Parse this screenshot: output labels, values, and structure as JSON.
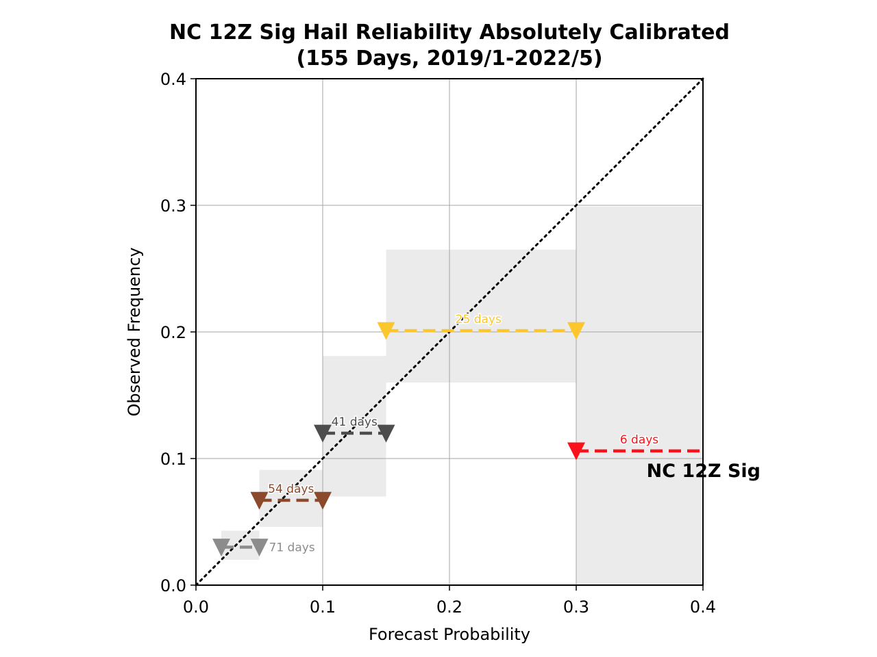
{
  "chart_data": {
    "type": "scatter",
    "title": "NC 12Z Sig Hail Reliability Absolutely Calibrated",
    "subtitle": "(155 Days, 2019/1-2022/5)",
    "xlabel": "Forecast Probability",
    "ylabel": "Observed Frequency",
    "xlim": [
      0.0,
      0.4
    ],
    "ylim": [
      0.0,
      0.4
    ],
    "x_ticks": [
      "0.0",
      "0.1",
      "0.2",
      "0.3",
      "0.4"
    ],
    "y_ticks": [
      "0.0",
      "0.1",
      "0.2",
      "0.3",
      "0.4"
    ],
    "grid": true,
    "perfect_reliability_line": {
      "from": [
        0.0,
        0.0
      ],
      "to": [
        0.4,
        0.4
      ],
      "style": "dotted",
      "color": "#000000"
    },
    "series_label": "NC 12Z Sig",
    "bins": [
      {
        "x_start": 0.02,
        "x_end": 0.05,
        "observed": 0.03,
        "ci_low": 0.02,
        "ci_high": 0.043,
        "label": "71 days",
        "color": "#8c8c8c",
        "marker_end": true
      },
      {
        "x_start": 0.05,
        "x_end": 0.1,
        "observed": 0.067,
        "ci_low": 0.046,
        "ci_high": 0.091,
        "label": "54 days",
        "color": "#8b4a2b",
        "marker_end": true
      },
      {
        "x_start": 0.1,
        "x_end": 0.15,
        "observed": 0.12,
        "ci_low": 0.07,
        "ci_high": 0.181,
        "label": "41 days",
        "color": "#4d4d4d",
        "marker_end": true
      },
      {
        "x_start": 0.15,
        "x_end": 0.3,
        "observed": 0.201,
        "ci_low": 0.16,
        "ci_high": 0.265,
        "label": "25 days",
        "color": "#fcc72c",
        "marker_end": true
      },
      {
        "x_start": 0.3,
        "x_end": 0.4,
        "observed": 0.106,
        "ci_low": 0.0,
        "ci_high": 0.299,
        "label": "6 days",
        "color": "#fb1119",
        "marker_end": false
      }
    ],
    "ci_fill_color": "#ebebeb"
  }
}
